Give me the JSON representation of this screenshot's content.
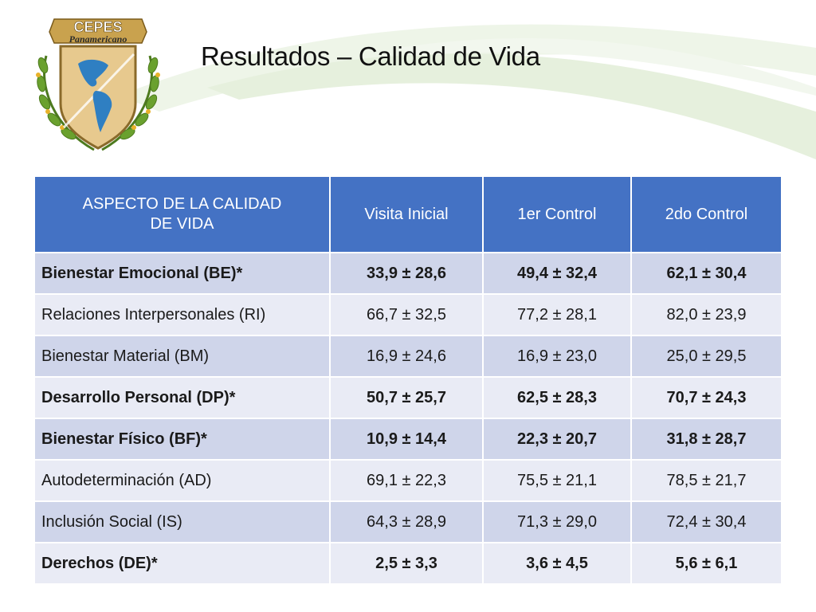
{
  "logo": {
    "name_top": "CEPES",
    "name_bottom": "Panamericano"
  },
  "slide": {
    "title": "Resultados – Calidad de Vida"
  },
  "table": {
    "headers": {
      "aspect_line1": "ASPECTO DE LA CALIDAD",
      "aspect_line2": "DE VIDA",
      "visita_inicial": "Visita Inicial",
      "control_1": "1er Control",
      "control_2": "2do Control"
    },
    "rows": [
      {
        "aspect": "Bienestar Emocional (BE)*",
        "v0": "33,9 ± 28,6",
        "v1": "49,4 ± 32,4",
        "v2": "62,1 ± 30,4"
      },
      {
        "aspect": "Relaciones Interpersonales (RI)",
        "v0": "66,7 ± 32,5",
        "v1": "77,2 ± 28,1",
        "v2": "82,0 ± 23,9"
      },
      {
        "aspect": "Bienestar Material (BM)",
        "v0": "16,9 ± 24,6",
        "v1": "16,9 ± 23,0",
        "v2": "25,0 ± 29,5"
      },
      {
        "aspect": "Desarrollo Personal (DP)*",
        "v0": "50,7 ± 25,7",
        "v1": "62,5 ± 28,3",
        "v2": "70,7 ± 24,3"
      },
      {
        "aspect": "Bienestar Físico (BF)*",
        "v0": "10,9 ± 14,4",
        "v1": "22,3 ± 20,7",
        "v2": "31,8 ± 28,7"
      },
      {
        "aspect": "Autodeterminación (AD)",
        "v0": "69,1 ± 22,3",
        "v1": "75,5 ± 21,1",
        "v2": "78,5 ± 21,7"
      },
      {
        "aspect": "Inclusión Social (IS)",
        "v0": "64,3 ± 28,9",
        "v1": "71,3 ± 29,0",
        "v2": "72,4 ± 30,4"
      },
      {
        "aspect": "Derechos (DE)*",
        "v0": "2,5 ± 3,3",
        "v1": "3,6 ± 4,5",
        "v2": "5,6 ± 6,1"
      }
    ]
  },
  "colors": {
    "header_bg": "#4472c4",
    "row_dark": "#cfd5ea",
    "row_light": "#e9ebf5",
    "swoosh": "#e4efd9"
  }
}
